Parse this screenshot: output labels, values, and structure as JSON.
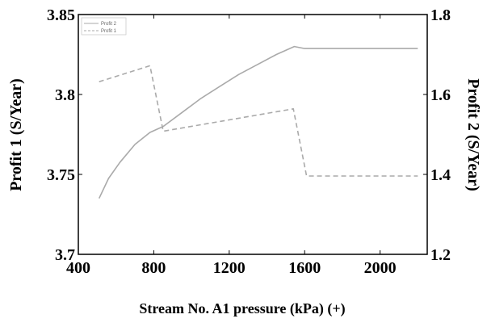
{
  "chart_data": {
    "type": "line",
    "xlabel": "Stream No. A1 pressure (kPa) (+)",
    "ylabel_left": "Profit 1 (S/Year)",
    "ylabel_right": "Profit 2 (S/Year)",
    "xlim": [
      400,
      2250
    ],
    "ylim_left": [
      3.7,
      3.85
    ],
    "ylim_right": [
      1.2,
      1.8
    ],
    "x_ticks": [
      "400",
      "800",
      "1200",
      "1600",
      "2000"
    ],
    "y_ticks_left": [
      "3.7",
      "3.75",
      "3.8",
      "3.85"
    ],
    "y_ticks_right": [
      "1.2",
      "1.4",
      "1.6",
      "1.8"
    ],
    "grid": false,
    "legend_position": "top-left",
    "series": [
      {
        "name": "Profit 2",
        "axis": "right",
        "style": "solid",
        "color": "#aaaaaa",
        "points": [
          [
            510,
            1.34
          ],
          [
            560,
            1.39
          ],
          [
            620,
            1.43
          ],
          [
            700,
            1.475
          ],
          [
            780,
            1.505
          ],
          [
            850,
            1.52
          ],
          [
            950,
            1.555
          ],
          [
            1050,
            1.59
          ],
          [
            1150,
            1.62
          ],
          [
            1250,
            1.65
          ],
          [
            1350,
            1.675
          ],
          [
            1450,
            1.7
          ],
          [
            1545,
            1.72
          ],
          [
            1600,
            1.715
          ],
          [
            2200,
            1.715
          ]
        ]
      },
      {
        "name": "Profit 1",
        "axis": "left",
        "style": "dashed",
        "color": "#aaaaaa",
        "points": [
          [
            510,
            3.808
          ],
          [
            780,
            3.818
          ],
          [
            850,
            3.777
          ],
          [
            1540,
            3.791
          ],
          [
            1610,
            3.749
          ],
          [
            2200,
            3.749
          ]
        ]
      }
    ]
  }
}
